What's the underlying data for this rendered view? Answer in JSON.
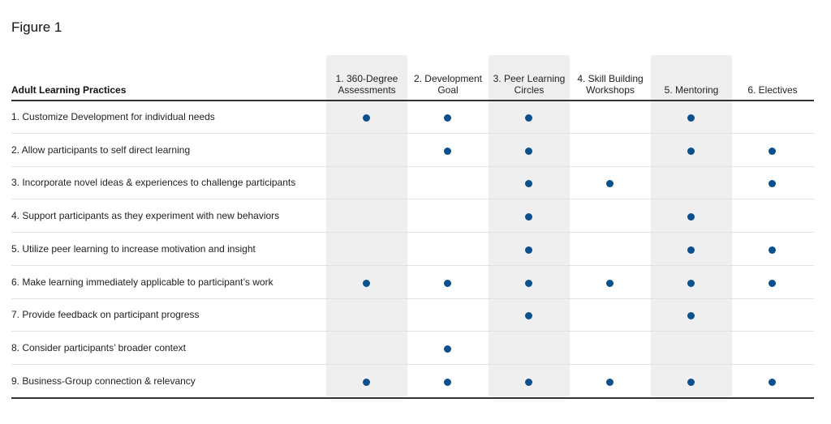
{
  "figure_title": "Figure 1",
  "chart_data": {
    "type": "table",
    "title": "Figure 1",
    "row_header": "Adult Learning Practices",
    "columns": [
      "1. 360-Degree Assessments",
      "2. Development Goal",
      "3. Peer Learning Circles",
      "4. Skill Building Workshops",
      "5. Mentoring",
      "6. Electives"
    ],
    "rows": [
      {
        "label": "1. Customize Development for individual needs",
        "marks": [
          1,
          1,
          1,
          0,
          1,
          0
        ]
      },
      {
        "label": "2. Allow participants to self direct learning",
        "marks": [
          0,
          1,
          1,
          0,
          1,
          1
        ]
      },
      {
        "label": "3. Incorporate novel ideas & experiences to challenge participants",
        "marks": [
          0,
          0,
          1,
          1,
          0,
          1
        ]
      },
      {
        "label": "4. Support participants as they experiment with new behaviors",
        "marks": [
          0,
          0,
          1,
          0,
          1,
          0
        ]
      },
      {
        "label": "5. Utilize peer learning to increase motivation and insight",
        "marks": [
          0,
          0,
          1,
          0,
          1,
          1
        ]
      },
      {
        "label": "6. Make learning immediately applicable to participant’s work",
        "marks": [
          1,
          1,
          1,
          1,
          1,
          1
        ]
      },
      {
        "label": "7. Provide feedback on participant progress",
        "marks": [
          0,
          0,
          1,
          0,
          1,
          0
        ]
      },
      {
        "label": "8. Consider participants’ broader context",
        "marks": [
          0,
          1,
          0,
          0,
          0,
          0
        ]
      },
      {
        "label": "9. Business-Group connection & relevancy",
        "marks": [
          1,
          1,
          1,
          1,
          1,
          1
        ]
      }
    ],
    "shaded_columns": [
      0,
      2,
      4
    ],
    "dot_color": "#0b4f8f",
    "shade_color": "#efefef"
  },
  "header": {
    "row_label": "Adult Learning Practices",
    "columns": [
      {
        "line1": "1. 360-Degree",
        "line2": "Assessments"
      },
      {
        "line1": "2. Development",
        "line2": "Goal"
      },
      {
        "line1": "3. Peer Learning",
        "line2": "Circles"
      },
      {
        "line1": "4. Skill Building",
        "line2": "Workshops"
      },
      {
        "line1": "",
        "line2": "5. Mentoring"
      },
      {
        "line1": "",
        "line2": "6. Electives"
      }
    ]
  }
}
